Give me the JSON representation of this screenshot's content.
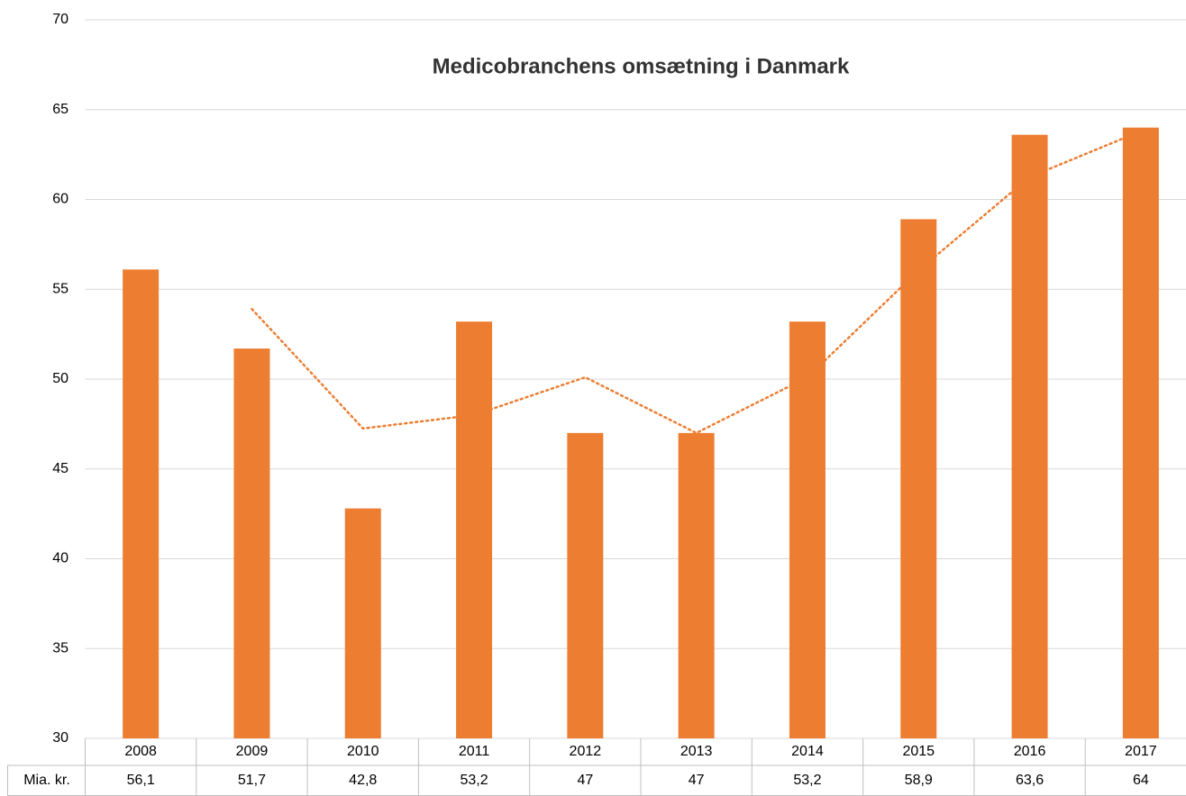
{
  "chart_data": {
    "type": "bar",
    "title": "Medicobranchens omsætning i Danmark",
    "categories": [
      "2008",
      "2009",
      "2010",
      "2011",
      "2012",
      "2013",
      "2014",
      "2015",
      "2016",
      "2017"
    ],
    "series": [
      {
        "name": "Mia. kr.",
        "color": "#ed7d31",
        "values": [
          56.1,
          51.7,
          42.8,
          53.2,
          47,
          47,
          53.2,
          58.9,
          63.6,
          64
        ],
        "value_labels": [
          "56,1",
          "51,7",
          "42,8",
          "53,2",
          "47",
          "47",
          "53,2",
          "58,9",
          "63,6",
          "64"
        ]
      }
    ],
    "trendline": {
      "color": "#ed7d31",
      "values": [
        null,
        53.9,
        47.25,
        48,
        50.1,
        47,
        50.1,
        56.05,
        61.25,
        63.8
      ]
    },
    "ylim": [
      30,
      70
    ],
    "yticks": [
      30,
      35,
      40,
      45,
      50,
      55,
      60,
      65,
      70
    ],
    "grid": true
  }
}
